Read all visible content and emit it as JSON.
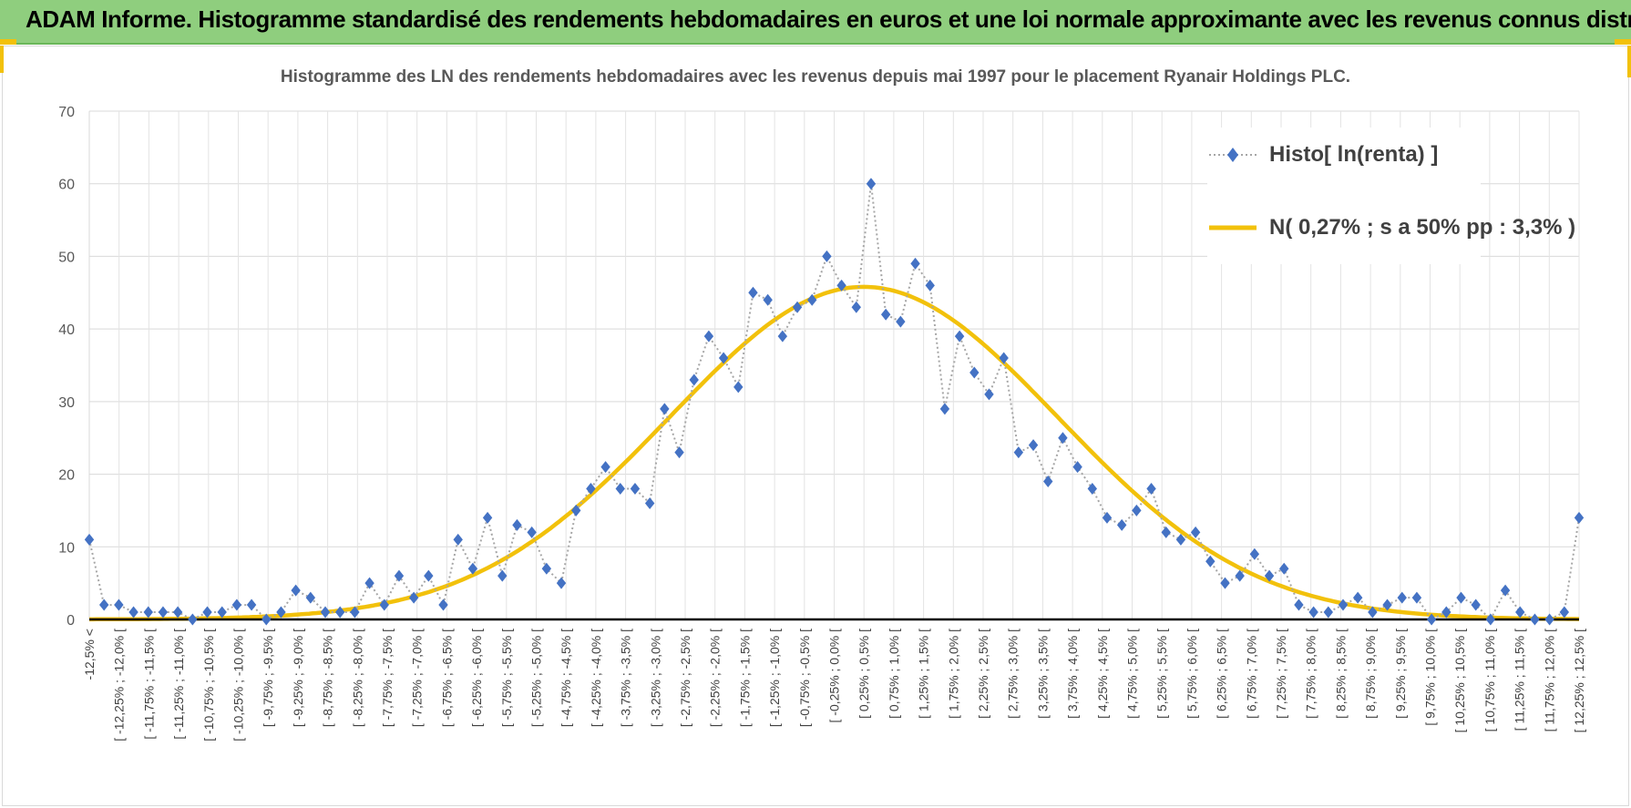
{
  "banner": {
    "title": "ADAM Informe. Histogramme standardisé des rendements hebdomadaires en euros et une loi normale approximante avec les revenus connus distribués"
  },
  "colors": {
    "banner_bg": "#8fce7e",
    "accent": "#f2c10b",
    "histo_marker": "#4472c4",
    "histo_line": "#a6a6a6",
    "normal_curve": "#f2c10b"
  },
  "chart_data": {
    "type": "line",
    "title": "Histogramme des LN des rendements hebdomadaires avec les revenus depuis mai 1997 pour le placement Ryanair Holdings PLC.",
    "xlabel": "",
    "ylabel": "",
    "ylim": [
      0,
      70
    ],
    "yticks": [
      0,
      10,
      20,
      30,
      40,
      50,
      60,
      70
    ],
    "grid": true,
    "legend_position": "top-right",
    "x_tick_labels": [
      "-12,5% <",
      "[ -12,25% ; -12,0% [",
      "[ -11,75% ; -11,5% [",
      "[ -11,25% ; -11,0% [",
      "[ -10,75% ; -10,5% [",
      "[ -10,25% ; -10,0% [",
      "[ -9,75% ; -9,5% [",
      "[ -9,25% ; -9,0% [",
      "[ -8,75% ; -8,5% [",
      "[ -8,25% ; -8,0% [",
      "[ -7,75% ; -7,5% [",
      "[ -7,25% ; -7,0% [",
      "[ -6,75% ; -6,5% [",
      "[ -6,25% ; -6,0% [",
      "[ -5,75% ; -5,5% [",
      "[ -5,25% ; -5,0% [",
      "[ -4,75% ; -4,5% [",
      "[ -4,25% ; -4,0% [",
      "[ -3,75% ; -3,5% [",
      "[ -3,25% ; -3,0% [",
      "[ -2,75% ; -2,5% [",
      "[ -2,25% ; -2,0% [",
      "[ -1,75% ; -1,5% [",
      "[ -1,25% ; -1,0% [",
      "[ -0,75% ; -0,5% [",
      "[ -0,25% ; 0,0% [",
      "[ 0,25% ; 0,5% [",
      "[ 0,75% ; 1,0% [",
      "[ 1,25% ; 1,5% [",
      "[ 1,75% ; 2,0% [",
      "[ 2,25% ; 2,5% [",
      "[ 2,75% ; 3,0% [",
      "[ 3,25% ; 3,5% [",
      "[ 3,75% ; 4,0% [",
      "[ 4,25% ; 4,5% [",
      "[ 4,75% ; 5,0% [",
      "[ 5,25% ; 5,5% [",
      "[ 5,75% ; 6,0% [",
      "[ 6,25% ; 6,5% [",
      "[ 6,75% ; 7,0% [",
      "[ 7,25% ; 7,5% [",
      "[ 7,75% ; 8,0% [",
      "[ 8,25% ; 8,5% [",
      "[ 8,75% ; 9,0% [",
      "[ 9,25% ; 9,5% [",
      "[ 9,75% ; 10,0% [",
      "[ 10,25% ; 10,5% [",
      "[ 10,75% ; 11,0% [",
      "[ 11,25% ; 11,5% [",
      "[ 11,75% ; 12,0% [",
      "[ 12,25% ; 12,5% ["
    ],
    "series": [
      {
        "name": "Histo[ ln(renta) ]",
        "style": "dotted-line-diamond-markers",
        "values": [
          11,
          2,
          2,
          1,
          1,
          1,
          1,
          0,
          1,
          1,
          2,
          2,
          0,
          1,
          4,
          3,
          1,
          1,
          1,
          5,
          2,
          6,
          3,
          6,
          2,
          11,
          7,
          14,
          6,
          13,
          12,
          7,
          5,
          15,
          18,
          21,
          18,
          18,
          16,
          29,
          23,
          33,
          39,
          36,
          32,
          45,
          44,
          39,
          43,
          44,
          50,
          46,
          43,
          60,
          42,
          41,
          49,
          46,
          29,
          39,
          34,
          31,
          36,
          23,
          24,
          19,
          25,
          21,
          18,
          14,
          13,
          15,
          18,
          12,
          11,
          12,
          8,
          5,
          6,
          9,
          6,
          7,
          2,
          1,
          1,
          2,
          3,
          1,
          2,
          3,
          3,
          0,
          1,
          3,
          2,
          0,
          4,
          1,
          0,
          0,
          1,
          14
        ]
      },
      {
        "name": "N( 0,27% ; s a 50% pp : 3,3% )",
        "style": "smooth-line",
        "mu_bin_position": 52.5,
        "sigma_bins": 13.2,
        "peak": 45.8
      }
    ]
  }
}
